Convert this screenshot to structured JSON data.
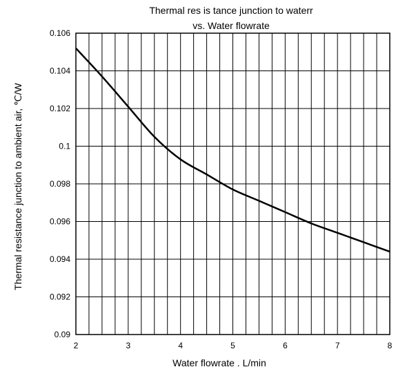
{
  "chart_data": {
    "type": "line",
    "title": "Thermal res is tance junction to waterr",
    "subtitle": "vs. Water flowrate",
    "xlabel": "Water flowrate  .  L/min",
    "ylabel": "Thermal resistance junction to ambient air,  ℃/W",
    "xlim": [
      2,
      8
    ],
    "ylim": [
      0.09,
      0.106
    ],
    "x_ticks": [
      2,
      3,
      4,
      5,
      6,
      7,
      8
    ],
    "x_tick_labels": [
      "2",
      "3",
      "4",
      "5",
      "6",
      "7",
      "8"
    ],
    "y_ticks": [
      0.09,
      0.092,
      0.094,
      0.096,
      0.098,
      0.1,
      0.102,
      0.104,
      0.106
    ],
    "y_tick_labels": [
      "0.09",
      "0.092",
      "0.094",
      "0.096",
      "0.098",
      "0.1",
      "0.102",
      "0.104",
      "0.106"
    ],
    "grid": true,
    "line_color": "#000000",
    "series": [
      {
        "x": [
          2.0,
          2.5,
          3.0,
          3.5,
          4.0,
          4.5,
          5.0,
          5.5,
          6.0,
          6.5,
          7.0,
          7.5,
          8.0
        ],
        "values": [
          0.1052,
          0.1037,
          0.1021,
          0.1005,
          0.0993,
          0.0985,
          0.0977,
          0.0971,
          0.0965,
          0.0959,
          0.0954,
          0.0949,
          0.0944
        ]
      }
    ]
  }
}
